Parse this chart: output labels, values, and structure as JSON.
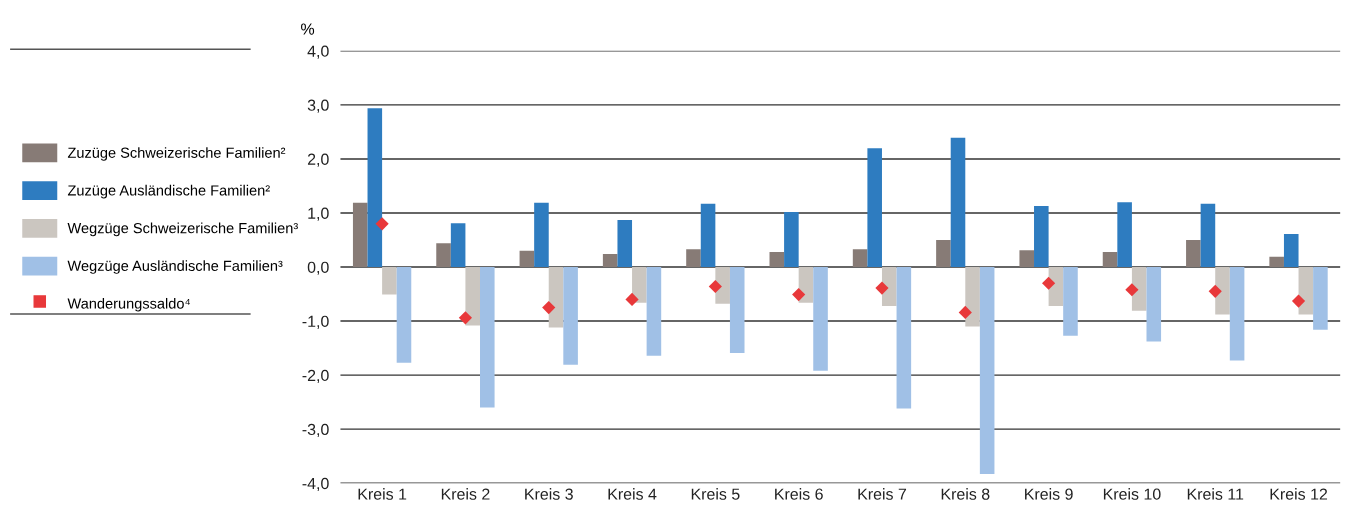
{
  "chart_data": {
    "type": "bar",
    "ylabel": "%",
    "categories": [
      "Kreis 1",
      "Kreis 2",
      "Kreis 3",
      "Kreis 4",
      "Kreis 5",
      "Kreis 6",
      "Kreis 7",
      "Kreis 8",
      "Kreis 9",
      "Kreis 10",
      "Kreis 11",
      "Kreis 12"
    ],
    "series": [
      {
        "name": "Zuzüge Schweizerische Familien²",
        "color": "#877b76",
        "values": [
          1.19,
          0.44,
          0.3,
          0.24,
          0.33,
          0.28,
          0.33,
          0.5,
          0.31,
          0.28,
          0.5,
          0.19
        ]
      },
      {
        "name": "Zuzüge Ausländische Familien²",
        "color": "#2e7cc0",
        "values": [
          2.94,
          0.81,
          1.19,
          0.87,
          1.17,
          1.02,
          2.2,
          2.39,
          1.13,
          1.2,
          1.17,
          0.61
        ]
      },
      {
        "name": "Wegzüge Schweizerische Familien³",
        "color": "#cbc6c0",
        "values": [
          -0.51,
          -1.08,
          -1.12,
          -0.66,
          -0.68,
          -0.66,
          -0.72,
          -1.1,
          -0.72,
          -0.81,
          -0.88,
          -0.88
        ]
      },
      {
        "name": "Wegzüge Ausländische Familien³",
        "color": "#a0c0e6",
        "values": [
          -1.77,
          -2.6,
          -1.81,
          -1.64,
          -1.59,
          -1.92,
          -2.62,
          -3.83,
          -1.27,
          -1.38,
          -1.73,
          -1.16
        ]
      },
      {
        "name": "Wanderungssaldo⁴",
        "color": "#e8383a",
        "type": "scatter",
        "marker": "diamond",
        "values": [
          0.8,
          -0.94,
          -0.75,
          -0.6,
          -0.36,
          -0.51,
          -0.39,
          -0.84,
          -0.3,
          -0.42,
          -0.45,
          -0.63
        ]
      }
    ],
    "ylim": [
      -4,
      4
    ],
    "yticks": [
      {
        "value": 4,
        "label": "4,0"
      },
      {
        "value": 3,
        "label": "3,0"
      },
      {
        "value": 2,
        "label": "2,0"
      },
      {
        "value": 1,
        "label": "1,0"
      },
      {
        "value": 0,
        "label": "0,0"
      },
      {
        "value": -1,
        "label": "-1,0"
      },
      {
        "value": -2,
        "label": "-2,0"
      },
      {
        "value": -3,
        "label": "-3,0"
      },
      {
        "value": -4,
        "label": "-4,0"
      }
    ],
    "grid": "y",
    "legend": "left"
  }
}
